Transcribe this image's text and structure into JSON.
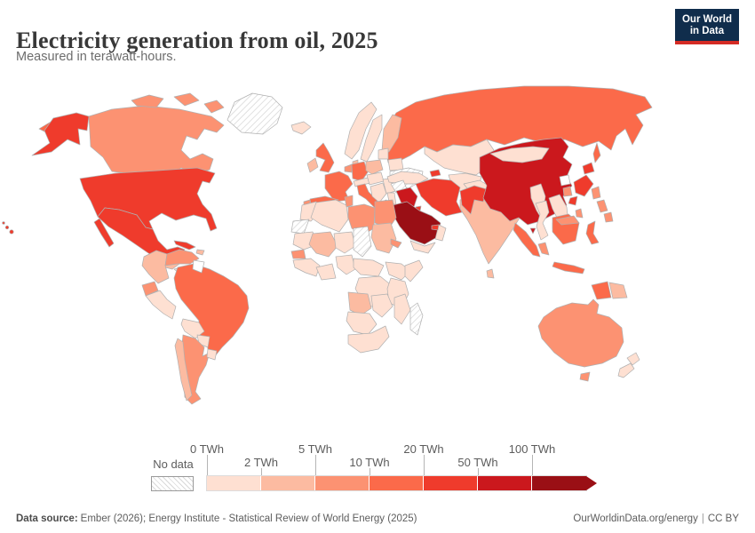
{
  "header": {
    "title": "Electricity generation from oil, 2025",
    "subtitle": "Measured in terawatt-hours.",
    "logo": {
      "line1": "Our World",
      "line2": "in Data"
    }
  },
  "legend": {
    "no_data_label": "No data",
    "bins": [
      {
        "label": "0 TWh",
        "row": 1
      },
      {
        "label": "2 TWh",
        "row": 2
      },
      {
        "label": "5 TWh",
        "row": 1
      },
      {
        "label": "10 TWh",
        "row": 2
      },
      {
        "label": "20 TWh",
        "row": 1
      },
      {
        "label": "50 TWh",
        "row": 2
      },
      {
        "label": "100 TWh",
        "row": 1
      }
    ]
  },
  "footer": {
    "source_label": "Data source:",
    "source_text": "Ember (2026); Energy Institute - Statistical Review of World Energy (2025)",
    "url": "OurWorldinData.org/energy",
    "divider": "|",
    "license": "CC BY"
  },
  "chart_data": {
    "type": "choropleth",
    "title": "Electricity generation from oil, 2025",
    "unit": "TWh",
    "year": 2025,
    "legend_thresholds": [
      "0 TWh",
      "2 TWh",
      "5 TWh",
      "10 TWh",
      "20 TWh",
      "50 TWh",
      "100 TWh"
    ],
    "bucket_colors": {
      "b0": "#fee0d2",
      "b2": "#fcbba1",
      "b5": "#fc9272",
      "b10": "#fb6a4a",
      "b20": "#ef3b2c",
      "b50": "#cb181d",
      "b100": "#9a0f15",
      "none": "#ffffff",
      "nodata": "hatch"
    },
    "bucket_ranges": {
      "b0": "0-2 TWh",
      "b2": "2-5 TWh",
      "b5": "5-10 TWh",
      "b10": "10-20 TWh",
      "b20": "20-50 TWh",
      "b50": "50-100 TWh",
      "b100": "100+ TWh",
      "nodata": "No data"
    },
    "countries": {
      "united-states": {
        "name": "United States",
        "bucket": "b20"
      },
      "canada": {
        "name": "Canada",
        "bucket": "b5"
      },
      "mexico": {
        "name": "Mexico",
        "bucket": "b20"
      },
      "greenland": {
        "name": "Greenland",
        "bucket": "nodata"
      },
      "cuba": {
        "name": "Cuba",
        "bucket": "b20"
      },
      "dominican-republic": {
        "name": "Dominican Republic",
        "bucket": "b2"
      },
      "central-america-west": {
        "name": "Guatemala and Honduras",
        "bucket": "b2"
      },
      "central-america-east": {
        "name": "Nicaragua, Costa Rica and Panama",
        "bucket": "b0"
      },
      "colombia": {
        "name": "Colombia",
        "bucket": "b2"
      },
      "venezuela": {
        "name": "Venezuela",
        "bucket": "b5"
      },
      "guyana-suriname": {
        "name": "Guyana and Suriname",
        "bucket": "none"
      },
      "ecuador": {
        "name": "Ecuador",
        "bucket": "b5"
      },
      "peru": {
        "name": "Peru",
        "bucket": "b0"
      },
      "brazil": {
        "name": "Brazil",
        "bucket": "b10"
      },
      "bolivia": {
        "name": "Bolivia",
        "bucket": "b0"
      },
      "paraguay": {
        "name": "Paraguay",
        "bucket": "b0"
      },
      "chile": {
        "name": "Chile",
        "bucket": "b2"
      },
      "argentina": {
        "name": "Argentina",
        "bucket": "b5"
      },
      "uruguay": {
        "name": "Uruguay",
        "bucket": "b0"
      },
      "iceland": {
        "name": "Iceland",
        "bucket": "b0"
      },
      "united-kingdom": {
        "name": "United Kingdom",
        "bucket": "b10"
      },
      "ireland": {
        "name": "Ireland",
        "bucket": "b2"
      },
      "norway": {
        "name": "Norway",
        "bucket": "b0"
      },
      "sweden": {
        "name": "Sweden",
        "bucket": "b0"
      },
      "finland": {
        "name": "Finland",
        "bucket": "b2"
      },
      "denmark": {
        "name": "Denmark",
        "bucket": "b2"
      },
      "netherlands-belgium": {
        "name": "Netherlands and Belgium",
        "bucket": "b5"
      },
      "germany": {
        "name": "Germany",
        "bucket": "b10"
      },
      "france": {
        "name": "France",
        "bucket": "b10"
      },
      "portugal": {
        "name": "Portugal",
        "bucket": "b5"
      },
      "spain": {
        "name": "Spain",
        "bucket": "b10"
      },
      "italy": {
        "name": "Italy",
        "bucket": "b10"
      },
      "switzerland-austria": {
        "name": "Switzerland and Austria",
        "bucket": "b0"
      },
      "poland": {
        "name": "Poland",
        "bucket": "b2"
      },
      "czechia-hungary": {
        "name": "Czechia, Slovakia and Hungary",
        "bucket": "b0"
      },
      "balkans": {
        "name": "Western Balkans",
        "bucket": "b0"
      },
      "romania-bulgaria": {
        "name": "Romania and Bulgaria",
        "bucket": "b0"
      },
      "greece": {
        "name": "Greece",
        "bucket": "b5"
      },
      "baltics": {
        "name": "Baltic states",
        "bucket": "b0"
      },
      "belarus": {
        "name": "Belarus",
        "bucket": "b0"
      },
      "ukraine": {
        "name": "Ukraine",
        "bucket": "nodata"
      },
      "russia": {
        "name": "Russia",
        "bucket": "b10"
      },
      "kazakhstan": {
        "name": "Kazakhstan",
        "bucket": "b0"
      },
      "central-asia": {
        "name": "Uzbekistan and Turkmenistan",
        "bucket": "b0"
      },
      "turkey": {
        "name": "Turkey",
        "bucket": "b0"
      },
      "azerbaijan": {
        "name": "Azerbaijan",
        "bucket": "b20"
      },
      "syria": {
        "name": "Syria",
        "bucket": "nodata"
      },
      "iraq": {
        "name": "Iraq",
        "bucket": "b50"
      },
      "israel-jordan": {
        "name": "Israel and Jordan",
        "bucket": "b0"
      },
      "saudi-arabia": {
        "name": "Saudi Arabia",
        "bucket": "b100"
      },
      "kuwait": {
        "name": "Kuwait",
        "bucket": "b20"
      },
      "united-arab-emirates": {
        "name": "United Arab Emirates",
        "bucket": "b20"
      },
      "oman": {
        "name": "Oman",
        "bucket": "b0"
      },
      "yemen": {
        "name": "Yemen",
        "bucket": "b0"
      },
      "iran": {
        "name": "Iran",
        "bucket": "b20"
      },
      "afghanistan": {
        "name": "Afghanistan",
        "bucket": "b0"
      },
      "pakistan": {
        "name": "Pakistan",
        "bucket": "b20"
      },
      "india": {
        "name": "India",
        "bucket": "b2"
      },
      "nepal": {
        "name": "Nepal",
        "bucket": "b0"
      },
      "bangladesh": {
        "name": "Bangladesh",
        "bucket": "b5"
      },
      "sri-lanka": {
        "name": "Sri Lanka",
        "bucket": "b2"
      },
      "china": {
        "name": "China",
        "bucket": "b50"
      },
      "mongolia": {
        "name": "Mongolia",
        "bucket": "b0"
      },
      "north-korea": {
        "name": "North Korea",
        "bucket": "none"
      },
      "south-korea": {
        "name": "South Korea",
        "bucket": "b5"
      },
      "japan": {
        "name": "Japan",
        "bucket": "b20"
      },
      "taiwan": {
        "name": "Taiwan",
        "bucket": "b5"
      },
      "myanmar": {
        "name": "Myanmar",
        "bucket": "b0"
      },
      "thailand": {
        "name": "Thailand",
        "bucket": "b0"
      },
      "vietnam-laos": {
        "name": "Vietnam and Laos",
        "bucket": "b0"
      },
      "cambodia": {
        "name": "Cambodia",
        "bucket": "b0"
      },
      "malaysia": {
        "name": "Malaysia",
        "bucket": "b5"
      },
      "indonesia": {
        "name": "Indonesia",
        "bucket": "b10"
      },
      "philippines": {
        "name": "Philippines",
        "bucket": "b5"
      },
      "papua-new-guinea": {
        "name": "Papua New Guinea",
        "bucket": "b2"
      },
      "australia": {
        "name": "Australia",
        "bucket": "b5"
      },
      "new-zealand": {
        "name": "New Zealand",
        "bucket": "b0"
      },
      "morocco": {
        "name": "Morocco",
        "bucket": "b0"
      },
      "western-sahara": {
        "name": "Western Sahara",
        "bucket": "nodata"
      },
      "algeria": {
        "name": "Algeria",
        "bucket": "b0"
      },
      "tunisia": {
        "name": "Tunisia",
        "bucket": "b5"
      },
      "libya": {
        "name": "Libya",
        "bucket": "b5"
      },
      "egypt": {
        "name": "Egypt",
        "bucket": "b5"
      },
      "mauritania": {
        "name": "Mauritania",
        "bucket": "b0"
      },
      "mali": {
        "name": "Mali",
        "bucket": "b2"
      },
      "niger": {
        "name": "Niger",
        "bucket": "b0"
      },
      "chad": {
        "name": "Chad",
        "bucket": "nodata"
      },
      "sudan": {
        "name": "Sudan",
        "bucket": "b2"
      },
      "eritrea": {
        "name": "Eritrea",
        "bucket": "b5"
      },
      "senegal": {
        "name": "Senegal",
        "bucket": "b5"
      },
      "guinea-region": {
        "name": "Guinea region",
        "bucket": "b0"
      },
      "ivory-coast-ghana": {
        "name": "Ivory Coast and Ghana",
        "bucket": "b0"
      },
      "nigeria": {
        "name": "Nigeria",
        "bucket": "b0"
      },
      "cameroon-car": {
        "name": "Cameroon and Central African Republic",
        "bucket": "b0"
      },
      "ethiopia": {
        "name": "Ethiopia",
        "bucket": "b0"
      },
      "somalia": {
        "name": "Somalia",
        "bucket": "b0"
      },
      "kenya-tanzania": {
        "name": "Kenya and Tanzania",
        "bucket": "b0"
      },
      "dr-congo": {
        "name": "Democratic Republic of Congo",
        "bucket": "b0"
      },
      "angola": {
        "name": "Angola",
        "bucket": "b2"
      },
      "zambia-zimbabwe": {
        "name": "Zambia and Zimbabwe",
        "bucket": "b0"
      },
      "mozambique": {
        "name": "Mozambique",
        "bucket": "b0"
      },
      "namibia-botswana": {
        "name": "Namibia and Botswana",
        "bucket": "b0"
      },
      "south-africa": {
        "name": "South Africa",
        "bucket": "b0"
      },
      "madagascar": {
        "name": "Madagascar",
        "bucket": "nodata"
      }
    }
  }
}
